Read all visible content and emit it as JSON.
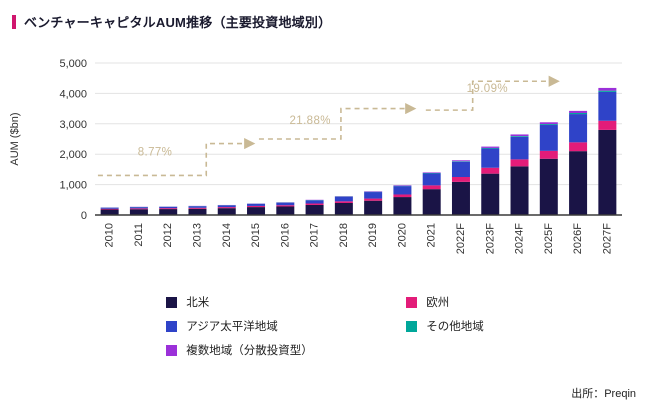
{
  "header": {
    "title": "ベンチャーキャピタルAUM推移（主要投資地域別）",
    "accent_color": "#d0166e"
  },
  "source": "出所：Preqin",
  "chart_data": {
    "type": "bar",
    "stacked": true,
    "title": "ベンチャーキャピタルAUM推移（主要投資地域別）",
    "xlabel": "",
    "ylabel": "AUM ($bn)",
    "ylim": [
      0,
      5000
    ],
    "ytick_step": 1000,
    "grid": "horizontal",
    "legend_position": "bottom",
    "categories": [
      "2010",
      "2011",
      "2012",
      "2013",
      "2014",
      "2015",
      "2016",
      "2017",
      "2018",
      "2019",
      "2020",
      "2021",
      "2022F",
      "2023F",
      "2024F",
      "2025F",
      "2026F",
      "2027F"
    ],
    "series": [
      {
        "name": "北米",
        "color": "#1a1446",
        "values": [
          180,
          190,
          195,
          205,
          225,
          260,
          280,
          330,
          395,
          470,
          590,
          850,
          1090,
          1360,
          1600,
          1850,
          2100,
          2800
        ]
      },
      {
        "name": "欧州",
        "color": "#e31c79",
        "values": [
          25,
          28,
          30,
          32,
          35,
          38,
          42,
          48,
          55,
          70,
          85,
          125,
          160,
          195,
          230,
          260,
          290,
          300
        ]
      },
      {
        "name": "アジア太平洋地域",
        "color": "#2f43c8",
        "values": [
          35,
          40,
          45,
          52,
          58,
          68,
          83,
          105,
          150,
          215,
          275,
          390,
          500,
          630,
          740,
          850,
          930,
          950
        ]
      },
      {
        "name": "その他地域",
        "color": "#00a79a",
        "values": [
          5,
          6,
          5,
          5,
          6,
          7,
          7,
          8,
          9,
          10,
          12,
          15,
          18,
          22,
          26,
          30,
          35,
          40
        ]
      },
      {
        "name": "複数地域（分散投資型）",
        "color": "#9b30d9",
        "values": [
          5,
          6,
          5,
          6,
          6,
          7,
          8,
          9,
          11,
          15,
          18,
          20,
          32,
          43,
          54,
          60,
          70,
          90
        ]
      }
    ],
    "annotation_color": "#c9b995",
    "annotations": [
      {
        "label": "8.77%",
        "label_x": 1.55,
        "label_y": 1950,
        "path": [
          [
            -0.4,
            1300
          ],
          [
            3.3,
            1300
          ],
          [
            3.3,
            2350
          ],
          [
            4.9,
            2350
          ]
        ]
      },
      {
        "label": "21.88%",
        "label_x": 6.85,
        "label_y": 3000,
        "path": [
          [
            5.1,
            2500
          ],
          [
            7.9,
            2500
          ],
          [
            7.9,
            3500
          ],
          [
            10.4,
            3500
          ]
        ]
      },
      {
        "label": "19.09%",
        "label_x": 12.9,
        "label_y": 4050,
        "path": [
          [
            10.8,
            3450
          ],
          [
            12.4,
            3450
          ],
          [
            12.4,
            4400
          ],
          [
            15.3,
            4400
          ]
        ]
      }
    ]
  }
}
